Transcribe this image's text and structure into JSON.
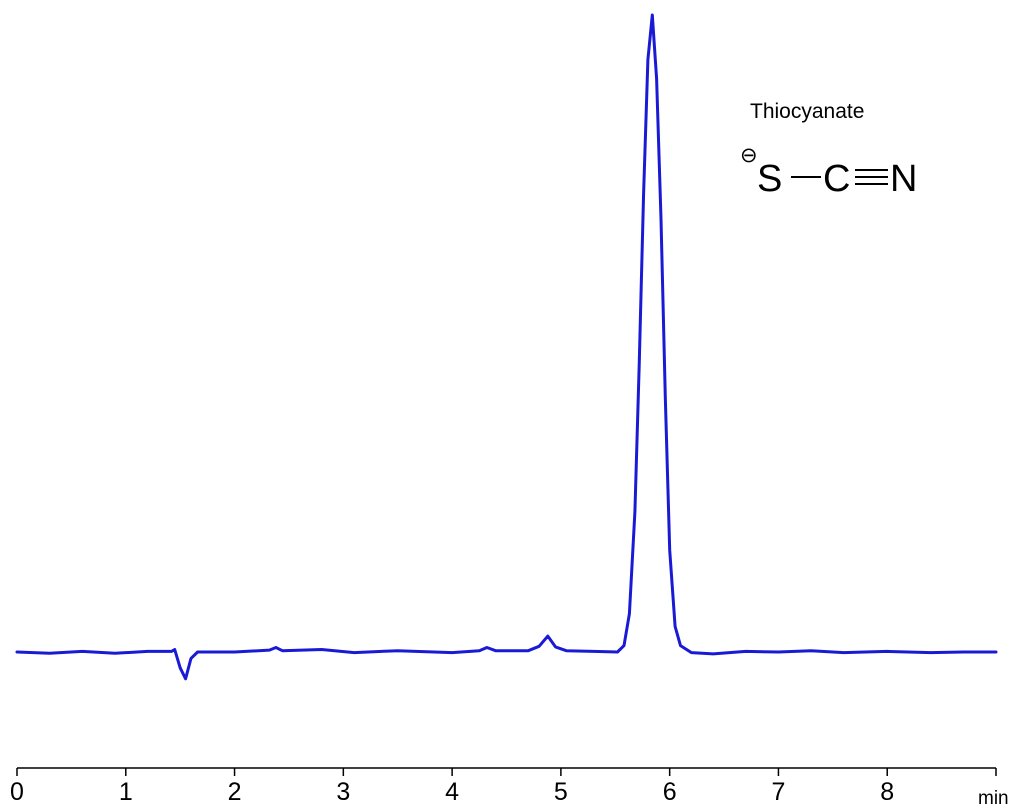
{
  "chart_data": {
    "type": "line",
    "title": "",
    "xlabel": "",
    "x_unit_label": "min",
    "ylabel": "",
    "xlim": [
      0,
      9
    ],
    "ylim": [
      -0.08,
      1.0
    ],
    "x_ticks": [
      "0",
      "1",
      "2",
      "3",
      "4",
      "5",
      "6",
      "7",
      "8"
    ],
    "grid": false,
    "legend": "none",
    "series": [
      {
        "color": "#1a1ad6",
        "baseline": 0.0,
        "points": [
          [
            0.0,
            0.0
          ],
          [
            0.3,
            -0.002
          ],
          [
            0.6,
            0.001
          ],
          [
            0.9,
            -0.002
          ],
          [
            1.2,
            0.001
          ],
          [
            1.42,
            0.001
          ],
          [
            1.45,
            0.004
          ],
          [
            1.5,
            -0.025
          ],
          [
            1.55,
            -0.042
          ],
          [
            1.6,
            -0.01
          ],
          [
            1.66,
            0.0
          ],
          [
            2.0,
            0.0
          ],
          [
            2.32,
            0.003
          ],
          [
            2.38,
            0.007
          ],
          [
            2.44,
            0.002
          ],
          [
            2.8,
            0.004
          ],
          [
            3.1,
            -0.001
          ],
          [
            3.5,
            0.002
          ],
          [
            4.0,
            -0.001
          ],
          [
            4.25,
            0.002
          ],
          [
            4.32,
            0.007
          ],
          [
            4.4,
            0.002
          ],
          [
            4.7,
            0.002
          ],
          [
            4.8,
            0.009
          ],
          [
            4.88,
            0.025
          ],
          [
            4.95,
            0.008
          ],
          [
            5.05,
            0.002
          ],
          [
            5.3,
            0.001
          ],
          [
            5.52,
            0.0
          ],
          [
            5.58,
            0.01
          ],
          [
            5.63,
            0.06
          ],
          [
            5.68,
            0.22
          ],
          [
            5.72,
            0.45
          ],
          [
            5.76,
            0.72
          ],
          [
            5.8,
            0.93
          ],
          [
            5.84,
            1.0
          ],
          [
            5.88,
            0.9
          ],
          [
            5.92,
            0.68
          ],
          [
            5.96,
            0.4
          ],
          [
            6.0,
            0.16
          ],
          [
            6.05,
            0.04
          ],
          [
            6.1,
            0.01
          ],
          [
            6.2,
            -0.001
          ],
          [
            6.4,
            -0.003
          ],
          [
            6.7,
            0.001
          ],
          [
            7.0,
            0.0
          ],
          [
            7.3,
            0.002
          ],
          [
            7.6,
            -0.001
          ],
          [
            8.0,
            0.001
          ],
          [
            8.4,
            -0.001
          ],
          [
            8.7,
            0.0
          ],
          [
            9.0,
            0.0
          ]
        ]
      }
    ],
    "annotations": {
      "compound_name": "Thiocyanate",
      "formula_charge": "⊖",
      "formula_S": "S",
      "formula_C": "C",
      "formula_N": "N"
    }
  }
}
